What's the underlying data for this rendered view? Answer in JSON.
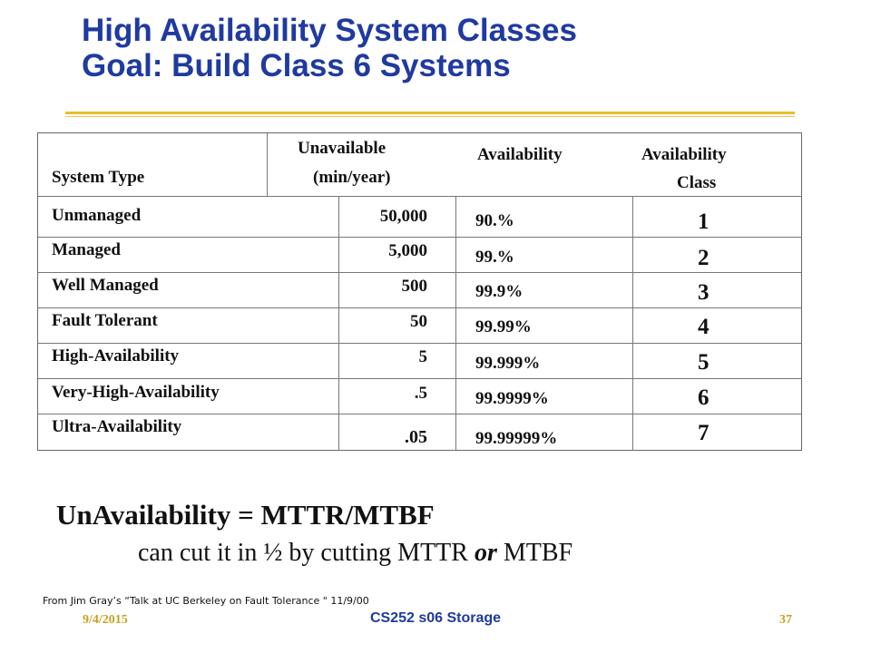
{
  "slide": {
    "title_line1": "High Availability System Classes",
    "title_line2": "Goal: Build Class 6 Systems"
  },
  "table": {
    "headers": {
      "system_type": "System Type",
      "unavailable_line1": "Unavailable",
      "unavailable_line2": "(min/year)",
      "availability": "Availability",
      "class_line1": "Availability",
      "class_line2": "Class"
    },
    "rows": [
      {
        "system_type": "Unmanaged",
        "unavailable": "50,000",
        "availability": "90.%",
        "class": "1"
      },
      {
        "system_type": "Managed",
        "unavailable": "5,000",
        "availability": "99.%",
        "class": "2"
      },
      {
        "system_type": "Well Managed",
        "unavailable": "500",
        "availability": "99.9%",
        "class": "3"
      },
      {
        "system_type": "Fault Tolerant",
        "unavailable": "50",
        "availability": "99.99%",
        "class": "4"
      },
      {
        "system_type": "High-Availability",
        "unavailable": "5",
        "availability": "99.999%",
        "class": "5"
      },
      {
        "system_type": "Very-High-Availability",
        "unavailable": ".5",
        "availability": "99.9999%",
        "class": "6"
      },
      {
        "system_type": "Ultra-Availability",
        "unavailable": ".05",
        "availability": "99.99999%",
        "class": "7"
      }
    ]
  },
  "formula": "UnAvailability =  MTTR/MTBF",
  "subline": {
    "before": "can cut it in ½ by cutting MTTR ",
    "emphasis": "or",
    "after": " MTBF"
  },
  "source_note": "From Jim Gray’s “Talk at UC Berkeley on Fault Tolerance \" 11/9/00",
  "footer": {
    "date": "9/4/2015",
    "center": "CS252 s06 Storage",
    "page": "37"
  },
  "colors": {
    "title": "#1f3aa0",
    "rule": "#e8bf2a",
    "footer_accent": "#c9a020"
  }
}
